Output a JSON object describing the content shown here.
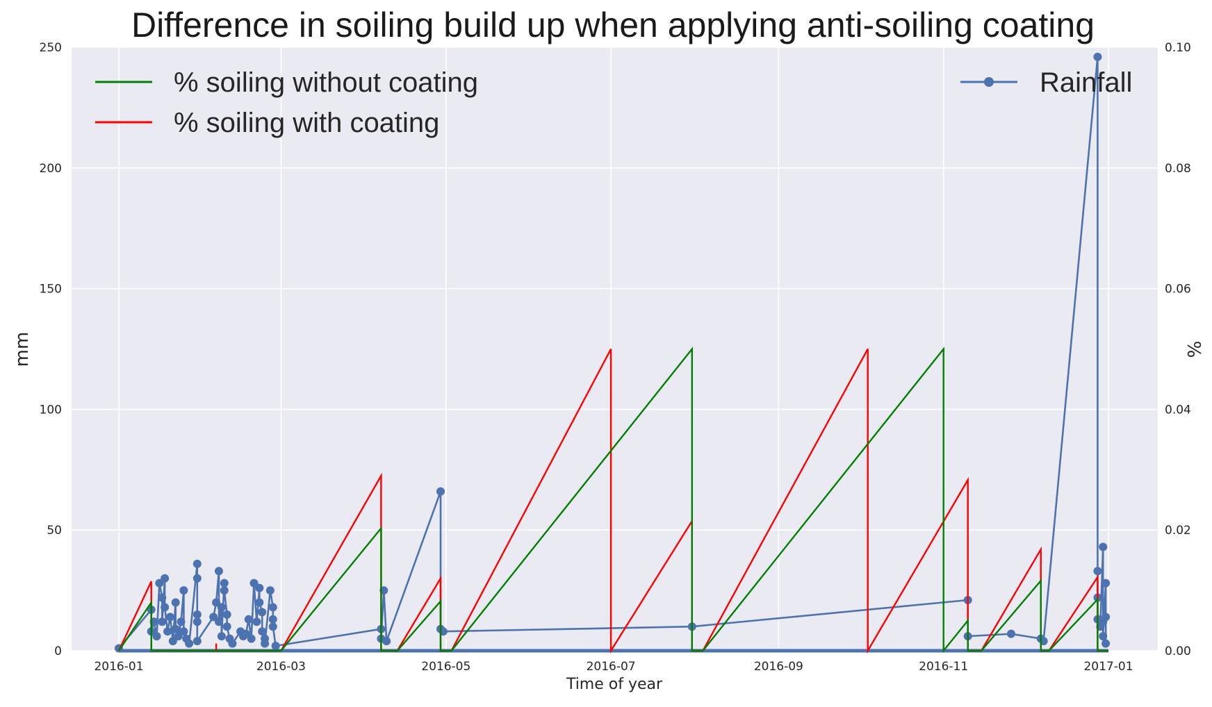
{
  "chart_data": {
    "type": "line",
    "title": "Difference in soiling build up when applying anti-soiling coating",
    "xlabel": "Time of year",
    "ylabel_left": "mm",
    "ylabel_right": "%",
    "x_ticks": [
      "2016-01",
      "2016-03",
      "2016-05",
      "2016-07",
      "2016-09",
      "2016-11",
      "2017-01"
    ],
    "y_left_ticks": [
      "0",
      "50",
      "100",
      "150",
      "200",
      "250"
    ],
    "y_right_ticks": [
      "0.00",
      "0.02",
      "0.04",
      "0.06",
      "0.08",
      "0.10"
    ],
    "ylim_left": [
      0,
      250
    ],
    "ylim_right": [
      0,
      0.1
    ],
    "grid": true,
    "legend_left": [
      {
        "label": "% soiling without coating",
        "color": "#008000"
      },
      {
        "label": "% soiling with coating",
        "color": "#ff0000"
      }
    ],
    "legend_right": [
      {
        "label": "Rainfall",
        "color": "#4c72b0"
      }
    ],
    "series": [
      {
        "name": "% soiling without coating",
        "axis": "right",
        "color": "#008000",
        "points": [
          [
            "2016-01-01",
            0
          ],
          [
            "2016-01-13",
            0.008
          ],
          [
            "2016-01-13",
            0
          ],
          [
            "2016-03-01",
            0
          ],
          [
            "2016-04-07",
            0.0203
          ],
          [
            "2016-04-07",
            0
          ],
          [
            "2016-04-13",
            0
          ],
          [
            "2016-04-29",
            0.0082
          ],
          [
            "2016-04-29",
            0
          ],
          [
            "2016-05-03",
            0
          ],
          [
            "2016-07-31",
            0.05
          ],
          [
            "2016-07-31",
            0
          ],
          [
            "2016-08-04",
            0
          ],
          [
            "2016-11-01",
            0.05
          ],
          [
            "2016-11-01",
            0
          ],
          [
            "2016-11-10",
            0.005
          ],
          [
            "2016-11-10",
            0
          ],
          [
            "2016-11-15",
            0
          ],
          [
            "2016-12-07",
            0.0116
          ],
          [
            "2016-12-07",
            0
          ],
          [
            "2016-12-10",
            0
          ],
          [
            "2016-12-28",
            0.0085
          ],
          [
            "2016-12-28",
            0
          ],
          [
            "2017-01-01",
            0
          ]
        ]
      },
      {
        "name": "% soiling with coating",
        "axis": "right",
        "color": "#ff0000",
        "points": [
          [
            "2016-01-01",
            0
          ],
          [
            "2016-01-13",
            0.0115
          ],
          [
            "2016-01-13",
            0
          ],
          [
            "2016-02-06",
            0
          ],
          [
            "2016-02-06",
            0.0012
          ],
          [
            "2016-02-06",
            0
          ],
          [
            "2016-03-01",
            0
          ],
          [
            "2016-04-07",
            0.029
          ],
          [
            "2016-04-07",
            0
          ],
          [
            "2016-04-13",
            0
          ],
          [
            "2016-04-29",
            0.012
          ],
          [
            "2016-04-29",
            0
          ],
          [
            "2016-05-03",
            0
          ],
          [
            "2016-07-01",
            0.05
          ],
          [
            "2016-07-01",
            0
          ],
          [
            "2016-07-31",
            0.0215
          ],
          [
            "2016-07-31",
            0
          ],
          [
            "2016-08-04",
            0
          ],
          [
            "2016-10-04",
            0.05
          ],
          [
            "2016-10-04",
            0
          ],
          [
            "2016-11-10",
            0.0283
          ],
          [
            "2016-11-10",
            0
          ],
          [
            "2016-11-15",
            0
          ],
          [
            "2016-12-07",
            0.0168
          ],
          [
            "2016-12-07",
            0
          ],
          [
            "2016-12-10",
            0
          ],
          [
            "2016-12-28",
            0.0122
          ],
          [
            "2016-12-28",
            0
          ],
          [
            "2017-01-01",
            0
          ]
        ]
      },
      {
        "name": "Rainfall",
        "axis": "left",
        "color": "#4c72b0",
        "points": [
          [
            "2016-01-01",
            1
          ],
          [
            "2016-01-13",
            17
          ],
          [
            "2016-01-13",
            8
          ],
          [
            "2016-01-14",
            12
          ],
          [
            "2016-01-15",
            6
          ],
          [
            "2016-01-16",
            28
          ],
          [
            "2016-01-17",
            22
          ],
          [
            "2016-01-17",
            12
          ],
          [
            "2016-01-18",
            30
          ],
          [
            "2016-01-18",
            18
          ],
          [
            "2016-01-19",
            8
          ],
          [
            "2016-01-20",
            14
          ],
          [
            "2016-01-21",
            4
          ],
          [
            "2016-01-22",
            20
          ],
          [
            "2016-01-22",
            9
          ],
          [
            "2016-01-23",
            6
          ],
          [
            "2016-01-24",
            12
          ],
          [
            "2016-01-25",
            25
          ],
          [
            "2016-01-25",
            8
          ],
          [
            "2016-01-26",
            5
          ],
          [
            "2016-01-27",
            3
          ],
          [
            "2016-01-30",
            36
          ],
          [
            "2016-01-30",
            30
          ],
          [
            "2016-01-30",
            15
          ],
          [
            "2016-01-30",
            12
          ],
          [
            "2016-01-30",
            4
          ],
          [
            "2016-02-05",
            14
          ],
          [
            "2016-02-06",
            20
          ],
          [
            "2016-02-07",
            33
          ],
          [
            "2016-02-07",
            12
          ],
          [
            "2016-02-08",
            18
          ],
          [
            "2016-02-08",
            6
          ],
          [
            "2016-02-09",
            28
          ],
          [
            "2016-02-09",
            25
          ],
          [
            "2016-02-10",
            15
          ],
          [
            "2016-02-10",
            10
          ],
          [
            "2016-02-11",
            5
          ],
          [
            "2016-02-12",
            3
          ],
          [
            "2016-02-15",
            8
          ],
          [
            "2016-02-16",
            6
          ],
          [
            "2016-02-17",
            7
          ],
          [
            "2016-02-18",
            13
          ],
          [
            "2016-02-19",
            5
          ],
          [
            "2016-02-20",
            28
          ],
          [
            "2016-02-21",
            12
          ],
          [
            "2016-02-22",
            26
          ],
          [
            "2016-02-22",
            20
          ],
          [
            "2016-02-23",
            16
          ],
          [
            "2016-02-23",
            8
          ],
          [
            "2016-02-24",
            5
          ],
          [
            "2016-02-24",
            3
          ],
          [
            "2016-02-26",
            25
          ],
          [
            "2016-02-27",
            18
          ],
          [
            "2016-02-27",
            13
          ],
          [
            "2016-02-27",
            10
          ],
          [
            "2016-02-28",
            2
          ],
          [
            "2016-04-07",
            9
          ],
          [
            "2016-04-07",
            5
          ],
          [
            "2016-04-08",
            25
          ],
          [
            "2016-04-09",
            4
          ],
          [
            "2016-04-29",
            66
          ],
          [
            "2016-04-29",
            9
          ],
          [
            "2016-04-30",
            8
          ],
          [
            "2016-07-31",
            10
          ],
          [
            "2016-11-10",
            21
          ],
          [
            "2016-11-10",
            6
          ],
          [
            "2016-11-26",
            7
          ],
          [
            "2016-12-07",
            5
          ],
          [
            "2016-12-08",
            4
          ],
          [
            "2016-12-28",
            246
          ],
          [
            "2016-12-28",
            33
          ],
          [
            "2016-12-28",
            22
          ],
          [
            "2016-12-28",
            13
          ],
          [
            "2016-12-29",
            10
          ],
          [
            "2016-12-30",
            43
          ],
          [
            "2016-12-30",
            12
          ],
          [
            "2016-12-30",
            6
          ],
          [
            "2016-12-31",
            28
          ],
          [
            "2016-12-31",
            14
          ],
          [
            "2016-12-31",
            3
          ]
        ]
      }
    ]
  }
}
